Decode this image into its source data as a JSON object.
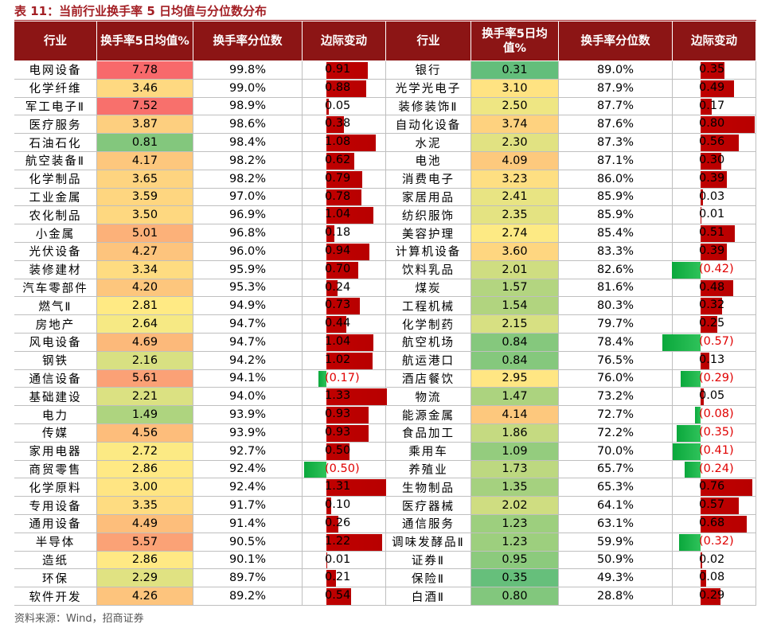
{
  "title": "表 11：当前行业换手率 5 日均值与分位数分布",
  "table": {
    "header": [
      "行业",
      "换手率5日均值%",
      "换手率分位数",
      "边际变动",
      "行业",
      "换手率5日均值%",
      "换手率分位数",
      "边际变动"
    ],
    "rows": [
      [
        "电网设备",
        "7.78",
        "99.8%",
        {
          "value": 0.91,
          "label": "0.91"
        },
        "银行",
        "0.31",
        "89.0%",
        {
          "value": 0.35,
          "label": "0.35"
        }
      ],
      [
        "化学纤维",
        "3.46",
        "99.0%",
        {
          "value": 0.88,
          "label": "0.88"
        },
        "光学光电子",
        "3.10",
        "87.9%",
        {
          "value": 0.49,
          "label": "0.49"
        }
      ],
      [
        "军工电子Ⅱ",
        "7.52",
        "98.9%",
        {
          "value": 0.05,
          "label": "0.05"
        },
        "装修装饰Ⅱ",
        "2.50",
        "87.7%",
        {
          "value": 0.17,
          "label": "0.17"
        }
      ],
      [
        "医疗服务",
        "3.87",
        "98.6%",
        {
          "value": 0.38,
          "label": "0.38"
        },
        "自动化设备",
        "3.74",
        "87.6%",
        {
          "value": 0.8,
          "label": "0.80"
        }
      ],
      [
        "石油石化",
        "0.81",
        "98.4%",
        {
          "value": 1.08,
          "label": "1.08"
        },
        "水泥",
        "2.30",
        "87.3%",
        {
          "value": 0.56,
          "label": "0.56"
        }
      ],
      [
        "航空装备Ⅱ",
        "4.17",
        "98.2%",
        {
          "value": 0.62,
          "label": "0.62"
        },
        "电池",
        "4.09",
        "87.1%",
        {
          "value": 0.3,
          "label": "0.30"
        }
      ],
      [
        "化学制品",
        "3.65",
        "98.2%",
        {
          "value": 0.79,
          "label": "0.79"
        },
        "消费电子",
        "3.23",
        "86.0%",
        {
          "value": 0.39,
          "label": "0.39"
        }
      ],
      [
        "工业金属",
        "3.59",
        "97.0%",
        {
          "value": 0.78,
          "label": "0.78"
        },
        "家居用品",
        "2.41",
        "85.9%",
        {
          "value": 0.03,
          "label": "0.03"
        }
      ],
      [
        "农化制品",
        "3.50",
        "96.9%",
        {
          "value": 1.04,
          "label": "1.04"
        },
        "纺织服饰",
        "2.35",
        "85.9%",
        {
          "value": 0.01,
          "label": "0.01"
        }
      ],
      [
        "小金属",
        "5.01",
        "96.8%",
        {
          "value": 0.18,
          "label": "0.18"
        },
        "美容护理",
        "2.74",
        "85.4%",
        {
          "value": 0.51,
          "label": "0.51"
        }
      ],
      [
        "光伏设备",
        "4.27",
        "96.0%",
        {
          "value": 0.94,
          "label": "0.94"
        },
        "计算机设备",
        "3.60",
        "83.3%",
        {
          "value": 0.39,
          "label": "0.39"
        }
      ],
      [
        "装修建材",
        "3.34",
        "95.9%",
        {
          "value": 0.7,
          "label": "0.70"
        },
        "饮料乳品",
        "2.01",
        "82.6%",
        {
          "value": -0.42,
          "label": "(0.42)"
        }
      ],
      [
        "汽车零部件",
        "4.20",
        "95.3%",
        {
          "value": 0.24,
          "label": "0.24"
        },
        "煤炭",
        "1.57",
        "81.6%",
        {
          "value": 0.48,
          "label": "0.48"
        }
      ],
      [
        "燃气Ⅱ",
        "2.81",
        "94.9%",
        {
          "value": 0.73,
          "label": "0.73"
        },
        "工程机械",
        "1.54",
        "80.3%",
        {
          "value": 0.32,
          "label": "0.32"
        }
      ],
      [
        "房地产",
        "2.64",
        "94.7%",
        {
          "value": 0.44,
          "label": "0.44"
        },
        "化学制药",
        "2.15",
        "79.7%",
        {
          "value": 0.25,
          "label": "0.25"
        }
      ],
      [
        "风电设备",
        "4.69",
        "94.7%",
        {
          "value": 1.04,
          "label": "1.04"
        },
        "航空机场",
        "0.84",
        "78.4%",
        {
          "value": -0.57,
          "label": "(0.57)"
        }
      ],
      [
        "钢铁",
        "2.16",
        "94.2%",
        {
          "value": 1.02,
          "label": "1.02"
        },
        "航运港口",
        "0.84",
        "76.5%",
        {
          "value": 0.13,
          "label": "0.13"
        }
      ],
      [
        "通信设备",
        "5.61",
        "94.1%",
        {
          "value": -0.17,
          "label": "(0.17)"
        },
        "酒店餐饮",
        "2.95",
        "76.0%",
        {
          "value": -0.29,
          "label": "(0.29)"
        }
      ],
      [
        "基础建设",
        "2.21",
        "94.0%",
        {
          "value": 1.33,
          "label": "1.33"
        },
        "物流",
        "1.47",
        "73.2%",
        {
          "value": 0.05,
          "label": "0.05"
        }
      ],
      [
        "电力",
        "1.49",
        "93.9%",
        {
          "value": 0.93,
          "label": "0.93"
        },
        "能源金属",
        "4.14",
        "72.7%",
        {
          "value": -0.08,
          "label": "(0.08)"
        }
      ],
      [
        "传媒",
        "4.56",
        "93.9%",
        {
          "value": 0.93,
          "label": "0.93"
        },
        "食品加工",
        "1.86",
        "72.2%",
        {
          "value": -0.35,
          "label": "(0.35)"
        }
      ],
      [
        "家用电器",
        "2.72",
        "92.7%",
        {
          "value": 0.5,
          "label": "0.50"
        },
        "乘用车",
        "1.09",
        "70.0%",
        {
          "value": -0.41,
          "label": "(0.41)"
        }
      ],
      [
        "商贸零售",
        "2.86",
        "92.4%",
        {
          "value": -0.5,
          "label": "(0.50)"
        },
        "养殖业",
        "1.73",
        "65.7%",
        {
          "value": -0.24,
          "label": "(0.24)"
        }
      ],
      [
        "化学原料",
        "3.00",
        "92.4%",
        {
          "value": 1.31,
          "label": "1.31"
        },
        "生物制品",
        "1.35",
        "65.3%",
        {
          "value": 0.76,
          "label": "0.76"
        }
      ],
      [
        "专用设备",
        "3.35",
        "91.7%",
        {
          "value": 0.1,
          "label": "0.10"
        },
        "医疗器械",
        "2.02",
        "64.1%",
        {
          "value": 0.57,
          "label": "0.57"
        }
      ],
      [
        "通用设备",
        "4.49",
        "91.4%",
        {
          "value": 0.26,
          "label": "0.26"
        },
        "通信服务",
        "1.23",
        "63.1%",
        {
          "value": 0.68,
          "label": "0.68"
        }
      ],
      [
        "半导体",
        "5.57",
        "90.5%",
        {
          "value": 1.22,
          "label": "1.22"
        },
        "调味发酵品Ⅱ",
        "1.23",
        "59.9%",
        {
          "value": -0.32,
          "label": "(0.32)"
        }
      ],
      [
        "造纸",
        "2.86",
        "90.1%",
        {
          "value": 0.01,
          "label": "0.01"
        },
        "证券Ⅱ",
        "0.95",
        "50.9%",
        {
          "value": 0.02,
          "label": "0.02"
        }
      ],
      [
        "环保",
        "2.29",
        "89.7%",
        {
          "value": 0.21,
          "label": "0.21"
        },
        "保险Ⅱ",
        "0.35",
        "49.3%",
        {
          "value": 0.08,
          "label": "0.08"
        }
      ],
      [
        "软件开发",
        "4.26",
        "89.2%",
        {
          "value": 0.54,
          "label": "0.54"
        },
        "白酒Ⅱ",
        "0.80",
        "28.8%",
        {
          "value": 0.29,
          "label": "0.29"
        }
      ]
    ]
  },
  "source": "资料来源：Wind，招商证券"
}
